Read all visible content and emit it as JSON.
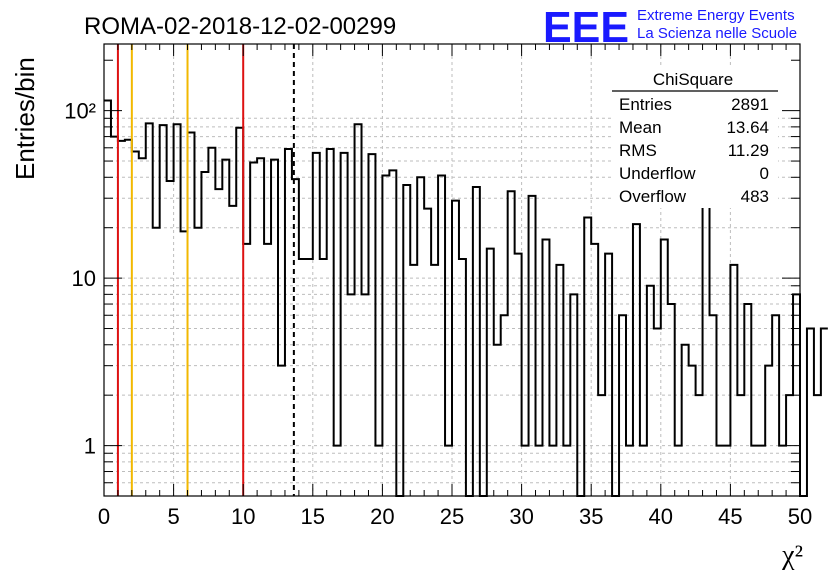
{
  "title": "ROMA-02-2018-12-02-00299",
  "logo": {
    "text": "EEE",
    "line1": "Extreme Energy Events",
    "line2": "La Scienza nelle Scuole",
    "color": "#1a1aff"
  },
  "stats": {
    "name": "ChiSquare",
    "rows": [
      {
        "label": "Entries",
        "value": "2891"
      },
      {
        "label": "Mean",
        "value": "13.64"
      },
      {
        "label": "RMS",
        "value": "11.29"
      },
      {
        "label": "Underflow",
        "value": "0"
      },
      {
        "label": "Overflow",
        "value": "483"
      }
    ]
  },
  "chart_data": {
    "type": "histogram",
    "xlabel": "χ²",
    "ylabel": "Entries/bin",
    "xlim": [
      0,
      50
    ],
    "ylim": [
      0.5,
      250
    ],
    "yscale": "log",
    "grid": true,
    "bin_width": 0.5,
    "x_ticks": [
      0,
      5,
      10,
      15,
      20,
      25,
      30,
      35,
      40,
      45,
      50
    ],
    "y_tick_labels": [
      "1",
      "10",
      "10²"
    ],
    "values": [
      115,
      70,
      66,
      67,
      57,
      52,
      84,
      20,
      82,
      38,
      83,
      19,
      74,
      20,
      43,
      60,
      34,
      51,
      27,
      79,
      16,
      49,
      52,
      16,
      51,
      3,
      59,
      39,
      13,
      13,
      56,
      13,
      59,
      1,
      56,
      8,
      83,
      8,
      55,
      1,
      41,
      44,
      0,
      36,
      12,
      40,
      26,
      12,
      41,
      1,
      29,
      13,
      0,
      35,
      0,
      15,
      4,
      6,
      33,
      14,
      1,
      31,
      1,
      17,
      1,
      12,
      1,
      8,
      0,
      23,
      16,
      2,
      14,
      0,
      6,
      1,
      21,
      1,
      9,
      5,
      17,
      7,
      1,
      4,
      3,
      2,
      28,
      6,
      1,
      1,
      12,
      2,
      7,
      1,
      1,
      3,
      6,
      1,
      2,
      8,
      0,
      5,
      2,
      5
    ],
    "vertical_lines": [
      {
        "x": 1,
        "color": "#dd1111",
        "style": "solid"
      },
      {
        "x": 2,
        "color": "#f2b800",
        "style": "solid"
      },
      {
        "x": 6,
        "color": "#f2b800",
        "style": "solid"
      },
      {
        "x": 10,
        "color": "#dd1111",
        "style": "solid"
      },
      {
        "x": 13.64,
        "color": "#000000",
        "style": "dashed"
      }
    ]
  }
}
